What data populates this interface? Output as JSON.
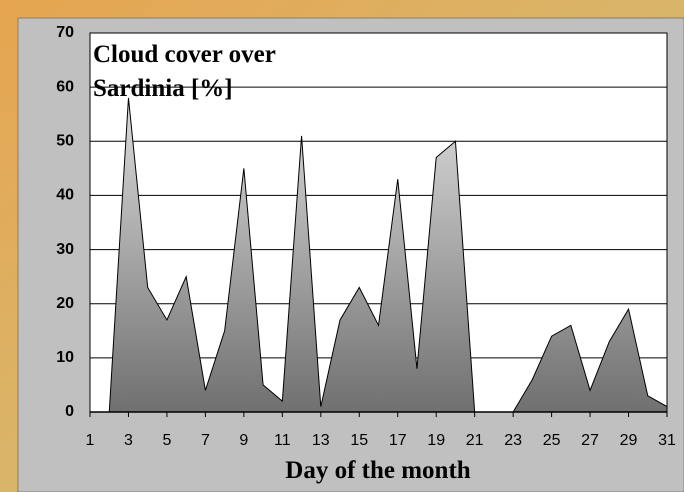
{
  "chart_data": {
    "type": "area",
    "title": "Cloud cover over Sardinia [%]",
    "x_label": "Day of the month",
    "x": [
      1,
      2,
      3,
      4,
      5,
      6,
      7,
      8,
      9,
      10,
      11,
      12,
      13,
      14,
      15,
      16,
      17,
      18,
      19,
      20,
      21,
      22,
      23,
      24,
      25,
      26,
      27,
      28,
      29,
      30,
      31
    ],
    "values": [
      0,
      0,
      58,
      23,
      17,
      25,
      4,
      15,
      45,
      5,
      2,
      51,
      1,
      17,
      23,
      16,
      43,
      8,
      47,
      50,
      0,
      0,
      0,
      6,
      14,
      16,
      4,
      13,
      19,
      3,
      1
    ],
    "xlim": [
      1,
      31
    ],
    "xticks": [
      1,
      3,
      5,
      7,
      9,
      11,
      13,
      15,
      17,
      19,
      21,
      23,
      25,
      27,
      29,
      31
    ],
    "ylim": [
      0,
      70
    ],
    "yticks": [
      0,
      10,
      20,
      30,
      40,
      50,
      60,
      70
    ],
    "grid": true,
    "color": "#8a8a8a"
  }
}
